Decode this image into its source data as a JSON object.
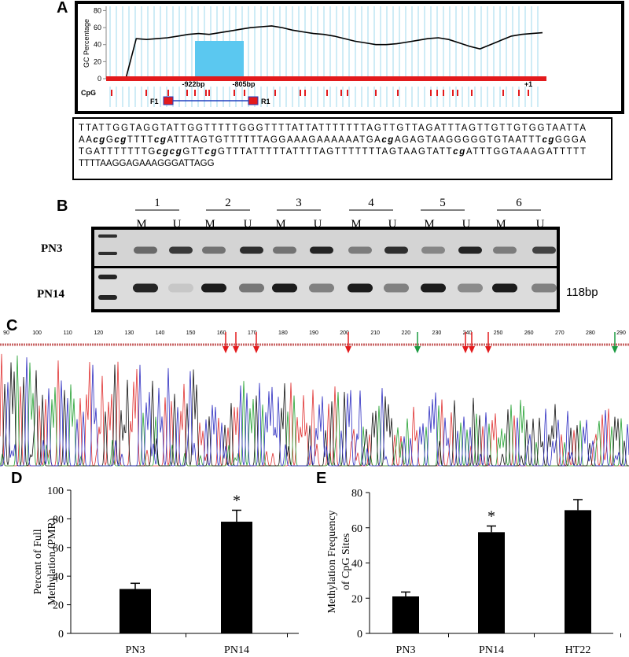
{
  "panel_labels": [
    "A",
    "B",
    "C",
    "D",
    "E"
  ],
  "chart_data": [
    {
      "type": "line",
      "ylabel": "GC Percentage",
      "ylim": [
        0,
        85
      ],
      "yticks": [
        0,
        20,
        40,
        60,
        80
      ],
      "color": "#000000",
      "values": [
        0,
        47,
        46,
        47,
        48,
        50,
        52,
        53,
        52,
        54,
        56,
        58,
        60,
        61,
        62,
        60,
        57,
        55,
        53,
        52,
        50,
        47,
        44,
        42,
        40,
        40,
        41,
        43,
        45,
        47,
        48,
        46,
        42,
        38,
        35,
        40,
        45,
        50,
        52,
        53,
        54
      ],
      "annotations": [
        "-922bp",
        "-805bp",
        "+1"
      ]
    },
    {
      "type": "bar",
      "ylabel": [
        "Percent of Full",
        "Methylation  (PMR)"
      ],
      "categories": [
        "PN3",
        "PN14"
      ],
      "values": [
        31,
        78
      ],
      "errors": [
        4,
        8
      ],
      "ylim": [
        0,
        100
      ],
      "yticks": [
        0,
        20,
        40,
        60,
        80,
        100
      ],
      "color": "#000000",
      "annotations": [
        {
          "text": "*",
          "at": "PN14"
        }
      ]
    },
    {
      "type": "bar",
      "ylabel": [
        "Methylation  Frequency",
        "of CpG Sites"
      ],
      "categories": [
        "PN3",
        "PN14",
        "HT22"
      ],
      "values": [
        21,
        57.5,
        70
      ],
      "errors": [
        2.5,
        3.5,
        6
      ],
      "ylim": [
        0,
        80
      ],
      "yticks": [
        0,
        20,
        40,
        60,
        80
      ],
      "color": "#000000",
      "annotations": [
        {
          "text": "*",
          "at": "PN14"
        }
      ]
    }
  ],
  "panel_a": {
    "cpg_label": "CpG",
    "forward_primer": "F1",
    "reverse_primer": "R1",
    "sequence": [
      [
        "TTATTGGTAGGTATTGGTTTTTGGGTTTTATTATTTTTTTAGTTGTTAGATTTAGTTGTTGTGGTAATTA"
      ],
      [
        "AA",
        "cg",
        "G",
        "cg",
        "TTTT",
        "cg",
        "ATTTAGTGTTTTTTAGGAAAGAAAAAATGA",
        "cg",
        "AGAGTAAGGGGGTGTAATTT",
        "cg",
        "GGGA"
      ],
      [
        "TGATTTTTTTG",
        "cgcg",
        "GTT",
        "cg",
        "GTTTATTTTTATTTTAGTTTTTTTAGTAAGTATT",
        "cg",
        "ATTTGGTAAAGATTTTT"
      ],
      [
        "TTTTAAGGAGAAAGGGATTAGG"
      ]
    ]
  },
  "panel_b": {
    "lanes": [
      "1",
      "2",
      "3",
      "4",
      "5",
      "6"
    ],
    "lane_types": [
      "M",
      "U"
    ],
    "rows": [
      "PN3",
      "PN14"
    ],
    "size_label": "118bp"
  },
  "panel_c": {
    "positions": [
      90,
      100,
      110,
      120,
      130,
      140,
      150,
      160,
      170,
      180,
      190,
      200,
      210,
      220,
      230,
      240,
      250,
      260,
      270,
      280,
      290
    ]
  }
}
